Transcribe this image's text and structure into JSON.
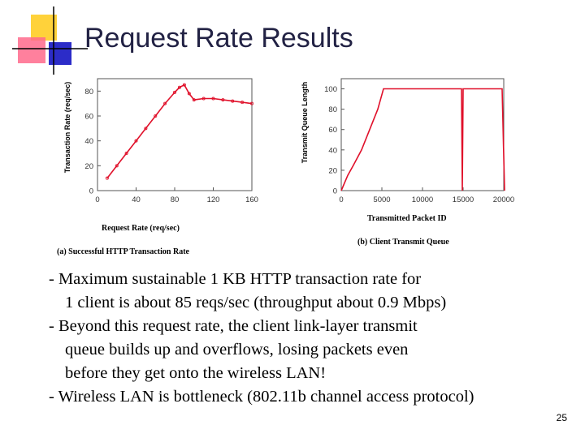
{
  "slide": {
    "title": "Request Rate Results",
    "page_number": "25",
    "bullets": [
      "- Maximum sustainable 1 KB HTTP transaction rate for",
      "1 client is about 85 reqs/sec   (throughput about 0.9 Mbps)",
      "- Beyond this request rate, the client link-layer transmit",
      "queue builds up and overflows, losing packets even",
      "before they get onto the wireless LAN!",
      "- Wireless LAN is bottleneck (802.11b channel access protocol)"
    ],
    "colors": {
      "accent_yellow": "#ffd23a",
      "accent_pink": "#ff6a8c",
      "accent_blue": "#2c2cc8",
      "series_red": "#e0102a"
    }
  },
  "chart_data": [
    {
      "type": "line",
      "caption": "(a) Successful HTTP Transaction Rate",
      "xlabel": "Request Rate (req/sec)",
      "ylabel": "Transaction Rate (req/sec)",
      "xlim": [
        0,
        160
      ],
      "ylim": [
        0,
        90
      ],
      "xticks": [
        "0",
        "40",
        "80",
        "120",
        "160"
      ],
      "yticks": [
        "0",
        "20",
        "40",
        "60",
        "80"
      ],
      "series": [
        {
          "x": [
            10,
            20,
            30,
            40,
            50,
            60,
            70,
            80,
            85,
            90,
            95,
            100,
            110,
            120,
            130,
            140,
            150,
            160
          ],
          "y": [
            10,
            20,
            30,
            40,
            50,
            60,
            70,
            79,
            83,
            85,
            78,
            73,
            74,
            74,
            73,
            72,
            71,
            70
          ]
        }
      ]
    },
    {
      "type": "line",
      "caption": "(b) Client Transmit Queue",
      "xlabel": "Transmitted Packet ID",
      "ylabel": "Transmit Queue Length",
      "xlim": [
        0,
        20000
      ],
      "ylim": [
        0,
        110
      ],
      "xticks": [
        "0",
        "5000",
        "10000",
        "15000",
        "20000"
      ],
      "yticks": [
        "0",
        "20",
        "40",
        "60",
        "80",
        "100"
      ],
      "series": [
        {
          "x": [
            0,
            800,
            1500,
            2500,
            3500,
            4500,
            5200,
            9000,
            14000,
            14800,
            14900,
            15000,
            16000,
            19800,
            20100
          ],
          "y": [
            0,
            15,
            25,
            40,
            60,
            80,
            100,
            100,
            100,
            100,
            0,
            100,
            100,
            100,
            0
          ]
        }
      ]
    }
  ]
}
